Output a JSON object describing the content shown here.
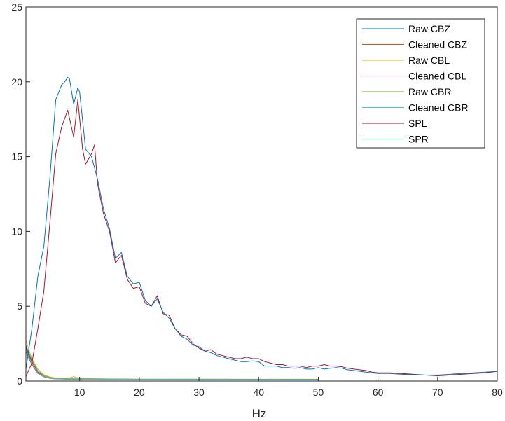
{
  "chart_data": {
    "type": "line",
    "title": "",
    "xlabel": "Hz",
    "ylabel": "",
    "xlim": [
      1,
      80
    ],
    "ylim": [
      0,
      25
    ],
    "x_ticks": [
      10,
      20,
      30,
      40,
      50,
      60,
      70,
      80
    ],
    "y_ticks": [
      0,
      5,
      10,
      15,
      20,
      25
    ],
    "grid": true,
    "legend_position": "top-right",
    "series": [
      {
        "name": "Raw CBZ",
        "color": "#0072BD",
        "x": [
          1,
          1.5,
          2,
          3,
          4,
          5,
          6,
          8,
          10,
          15,
          20,
          30,
          40,
          50
        ],
        "y": [
          2.2,
          1.7,
          1.2,
          0.6,
          0.32,
          0.2,
          0.16,
          0.14,
          0.13,
          0.11,
          0.1,
          0.09,
          0.09,
          0.08
        ]
      },
      {
        "name": "Cleaned CBZ",
        "color": "#D95319",
        "x": [
          1,
          1.5,
          2,
          3,
          4,
          5,
          6,
          8,
          10,
          15,
          20,
          30,
          40,
          50
        ],
        "y": [
          2.0,
          1.5,
          1.1,
          0.5,
          0.28,
          0.18,
          0.14,
          0.12,
          0.11,
          0.1,
          0.09,
          0.08,
          0.08,
          0.07
        ]
      },
      {
        "name": "Raw CBL",
        "color": "#EDB120",
        "x": [
          1,
          1.5,
          2,
          3,
          4,
          5,
          6,
          8,
          9,
          10,
          15,
          20,
          30,
          40,
          50
        ],
        "y": [
          2.7,
          2.1,
          1.5,
          0.8,
          0.42,
          0.28,
          0.2,
          0.18,
          0.3,
          0.18,
          0.14,
          0.12,
          0.11,
          0.1,
          0.1
        ]
      },
      {
        "name": "Cleaned CBL",
        "color": "#7E2F8E",
        "x": [
          1,
          1.5,
          2,
          3,
          4,
          5,
          6,
          8,
          10,
          15,
          20,
          30,
          40,
          50
        ],
        "y": [
          2.3,
          1.8,
          1.3,
          0.6,
          0.3,
          0.2,
          0.15,
          0.13,
          0.12,
          0.1,
          0.09,
          0.08,
          0.08,
          0.07
        ]
      },
      {
        "name": "Raw CBR",
        "color": "#77AC30",
        "x": [
          1,
          1.5,
          2,
          3,
          4,
          5,
          6,
          8,
          10,
          15,
          20,
          30,
          40,
          50
        ],
        "y": [
          2.4,
          1.9,
          1.4,
          0.7,
          0.36,
          0.24,
          0.18,
          0.16,
          0.15,
          0.14,
          0.13,
          0.13,
          0.12,
          0.12
        ]
      },
      {
        "name": "Cleaned CBR",
        "color": "#4DBEEE",
        "x": [
          1,
          1.5,
          2,
          3,
          4,
          5,
          6,
          8,
          10,
          15,
          20,
          30,
          40,
          50
        ],
        "y": [
          2.1,
          1.6,
          1.2,
          0.55,
          0.3,
          0.2,
          0.15,
          0.13,
          0.12,
          0.1,
          0.1,
          0.09,
          0.09,
          0.08
        ]
      },
      {
        "name": "SPL",
        "color": "#A2142F",
        "x": [
          1,
          2,
          3,
          4,
          5,
          6,
          7,
          8,
          9,
          9.7,
          10.5,
          11,
          12,
          12.5,
          13,
          14,
          15,
          16,
          17,
          18,
          19,
          20,
          21,
          22,
          23,
          24,
          25,
          26,
          27,
          28,
          29,
          30,
          31,
          32,
          33,
          34,
          35,
          36,
          37,
          38,
          39,
          40,
          41,
          42,
          43,
          44,
          45,
          46,
          47,
          48,
          49,
          50,
          51,
          52,
          53,
          54,
          55,
          56,
          57,
          58,
          59,
          60,
          62,
          64,
          66,
          68,
          70,
          72,
          74,
          76,
          78,
          80
        ],
        "y": [
          0.3,
          1.2,
          3.5,
          6.0,
          10.5,
          15.2,
          17.0,
          18.1,
          16.3,
          18.8,
          15.5,
          14.5,
          15.2,
          15.8,
          13.2,
          11.2,
          10.0,
          7.9,
          8.4,
          6.8,
          6.2,
          6.3,
          5.2,
          5.0,
          5.7,
          4.5,
          4.4,
          3.5,
          3.1,
          3.0,
          2.5,
          2.2,
          2.0,
          2.1,
          1.8,
          1.7,
          1.6,
          1.5,
          1.5,
          1.6,
          1.5,
          1.5,
          1.3,
          1.2,
          1.1,
          1.1,
          1.0,
          1.0,
          1.0,
          0.9,
          1.0,
          1.0,
          1.1,
          1.0,
          1.0,
          0.95,
          0.85,
          0.8,
          0.75,
          0.7,
          0.6,
          0.55,
          0.55,
          0.5,
          0.45,
          0.4,
          0.35,
          0.4,
          0.45,
          0.5,
          0.55,
          0.65
        ]
      },
      {
        "name": "SPR",
        "color": "#0072BD",
        "x": [
          1,
          2,
          3,
          4,
          5,
          6,
          7,
          7.5,
          8,
          8.3,
          9,
          9.7,
          10,
          11,
          12,
          13,
          14,
          15,
          16,
          17,
          18,
          19,
          20,
          21,
          22,
          23,
          24,
          25,
          26,
          27,
          28,
          29,
          30,
          31,
          32,
          33,
          34,
          35,
          36,
          37,
          38,
          39,
          40,
          41,
          42,
          43,
          44,
          45,
          46,
          47,
          48,
          49,
          50,
          51,
          52,
          53,
          54,
          55,
          56,
          57,
          58,
          59,
          60,
          62,
          64,
          66,
          68,
          70,
          72,
          74,
          76,
          78,
          80
        ],
        "y": [
          0.8,
          3.5,
          7.0,
          9.0,
          13.5,
          18.8,
          19.8,
          20.0,
          20.3,
          20.2,
          18.5,
          19.6,
          19.3,
          15.5,
          15.0,
          13.5,
          11.5,
          10.2,
          8.2,
          8.6,
          7.0,
          6.5,
          6.6,
          5.4,
          5.0,
          5.5,
          4.6,
          4.2,
          3.5,
          3.0,
          2.8,
          2.4,
          2.3,
          2.0,
          1.9,
          1.7,
          1.6,
          1.5,
          1.4,
          1.3,
          1.3,
          1.35,
          1.3,
          1.0,
          1.0,
          1.0,
          0.9,
          0.9,
          0.85,
          0.9,
          0.8,
          0.8,
          0.9,
          0.8,
          0.85,
          0.9,
          0.85,
          0.75,
          0.7,
          0.65,
          0.6,
          0.55,
          0.5,
          0.5,
          0.45,
          0.42,
          0.4,
          0.4,
          0.45,
          0.5,
          0.55,
          0.6,
          0.65
        ]
      }
    ]
  }
}
